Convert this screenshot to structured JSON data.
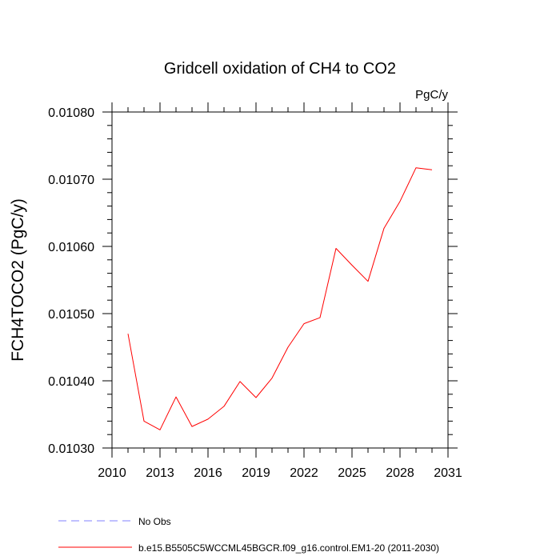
{
  "chart_data": {
    "type": "line",
    "title": "Gridcell oxidation of CH4 to CO2",
    "units_label": "PgC/y",
    "xlabel": "",
    "ylabel": "FCH4TOCO2  (PgC/y)",
    "xlim": [
      2010,
      2031
    ],
    "ylim": [
      0.0103,
      0.0108
    ],
    "x_ticks": [
      {
        "value": 2010,
        "label": "2010"
      },
      {
        "value": 2013,
        "label": "2013"
      },
      {
        "value": 2016,
        "label": "2016"
      },
      {
        "value": 2019,
        "label": "2019"
      },
      {
        "value": 2022,
        "label": "2022"
      },
      {
        "value": 2025,
        "label": "2025"
      },
      {
        "value": 2028,
        "label": "2028"
      },
      {
        "value": 2031,
        "label": "2031"
      }
    ],
    "y_ticks": [
      {
        "value": 0.0103,
        "label": "0.01030"
      },
      {
        "value": 0.0104,
        "label": "0.01040"
      },
      {
        "value": 0.0105,
        "label": "0.01050"
      },
      {
        "value": 0.0106,
        "label": "0.01060"
      },
      {
        "value": 0.0107,
        "label": "0.01070"
      },
      {
        "value": 0.0108,
        "label": "0.01080"
      }
    ],
    "x_minor_step": 1,
    "y_minor_step": 2e-05,
    "series": [
      {
        "name": "b.e15.B5505C5WCCML45BGCR.f09_g16.control.EM1-20 (2011-2030)",
        "color": "#ff0000",
        "dash": "solid",
        "x": [
          2011,
          2012,
          2013,
          2014,
          2015,
          2016,
          2017,
          2018,
          2019,
          2020,
          2021,
          2022,
          2023,
          2024,
          2025,
          2026,
          2027,
          2028,
          2029,
          2030
        ],
        "values": [
          0.01047,
          0.01034,
          0.010327,
          0.010376,
          0.010332,
          0.010343,
          0.010362,
          0.010399,
          0.010375,
          0.010404,
          0.01045,
          0.010485,
          0.010494,
          0.010597,
          0.010572,
          0.010548,
          0.010627,
          0.010667,
          0.010717,
          0.010714
        ]
      }
    ],
    "legend": [
      {
        "label": "No Obs",
        "color": "#8080ff",
        "dash": "dashed"
      },
      {
        "label": "b.e15.B5505C5WCCML45BGCR.f09_g16.control.EM1-20 (2011-2030)",
        "color": "#ff0000",
        "dash": "solid"
      }
    ]
  }
}
